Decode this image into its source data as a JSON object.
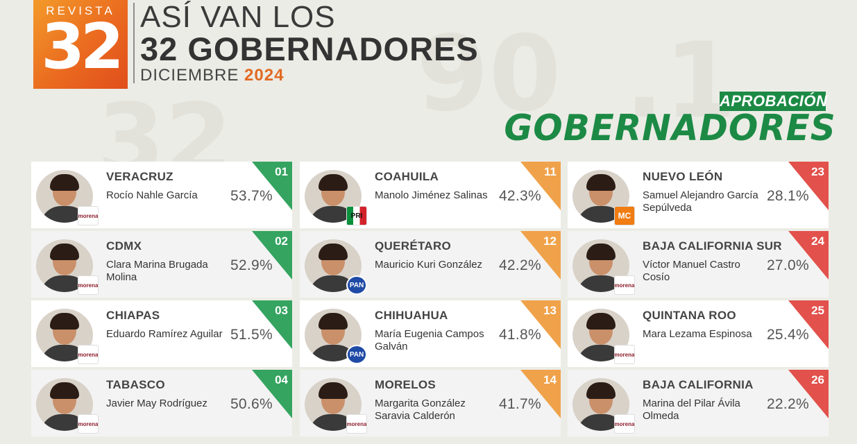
{
  "header": {
    "logo_brand": "REVISTA",
    "logo_number": "32",
    "title_line1": "ASÍ VAN LOS",
    "title_line2": "32 GOBERNADORES",
    "subtitle_month": "DICIEMBRE",
    "subtitle_year": "2024",
    "badge": "APROBACIÓN",
    "section_title": "GOBERNADORES"
  },
  "colors": {
    "green": "#34a460",
    "orange": "#f0a24a",
    "red": "#e2514b",
    "accent_orange": "#e26a23",
    "brand_green": "#1c8a45"
  },
  "columns": [
    {
      "color": "green",
      "items": [
        {
          "rank": "01",
          "state": "VERACRUZ",
          "name": "Rocío Nahle García",
          "pct": "53.7%",
          "party": "morena"
        },
        {
          "rank": "02",
          "state": "CDMX",
          "name": "Clara Marina Brugada Molina",
          "pct": "52.9%",
          "party": "morena"
        },
        {
          "rank": "03",
          "state": "CHIAPAS",
          "name": "Eduardo Ramírez Aguilar",
          "pct": "51.5%",
          "party": "morena"
        },
        {
          "rank": "04",
          "state": "TABASCO",
          "name": "Javier May Rodríguez",
          "pct": "50.6%",
          "party": "morena"
        }
      ]
    },
    {
      "color": "orange",
      "items": [
        {
          "rank": "11",
          "state": "COAHUILA",
          "name": "Manolo Jiménez Salinas",
          "pct": "42.3%",
          "party": "pri"
        },
        {
          "rank": "12",
          "state": "QUERÉTARO",
          "name": "Mauricio Kuri González",
          "pct": "42.2%",
          "party": "pan"
        },
        {
          "rank": "13",
          "state": "CHIHUAHUA",
          "name": "María Eugenia Campos Galván",
          "pct": "41.8%",
          "party": "pan"
        },
        {
          "rank": "14",
          "state": "MORELOS",
          "name": "Margarita González Saravia Calderón",
          "pct": "41.7%",
          "party": "morena"
        }
      ]
    },
    {
      "color": "red",
      "items": [
        {
          "rank": "23",
          "state": "NUEVO LEÓN",
          "name": "Samuel Alejandro García Sepúlveda",
          "pct": "28.1%",
          "party": "mc"
        },
        {
          "rank": "24",
          "state": "BAJA CALIFORNIA SUR",
          "name": "Víctor Manuel Castro Cosío",
          "pct": "27.0%",
          "party": "morena"
        },
        {
          "rank": "25",
          "state": "QUINTANA ROO",
          "name": "Mara Lezama Espinosa",
          "pct": "25.4%",
          "party": "morena"
        },
        {
          "rank": "26",
          "state": "BAJA CALIFORNIA",
          "name": "Marina del Pilar Ávila Olmeda",
          "pct": "22.2%",
          "party": "morena"
        }
      ]
    }
  ],
  "party_labels": {
    "morena": "morena",
    "pri": "PRI",
    "pan": "PAN",
    "mc": "MC"
  }
}
